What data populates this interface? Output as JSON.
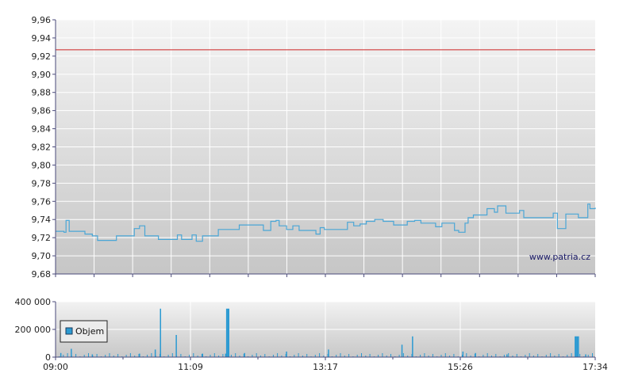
{
  "watermark": "www.patria.cz",
  "colors": {
    "price_line": "#4aa6d6",
    "reference_line": "#cc2222",
    "volume_bar": "#2b9ad2",
    "plot_bg_top": "#f4f4f4",
    "plot_bg_bottom": "#c8c8c8",
    "grid": "#ffffff",
    "axis": "#4a4a7a"
  },
  "chart_data": [
    {
      "type": "line",
      "name": "price",
      "reference_value": 9.927,
      "ylim": [
        9.68,
        9.96
      ],
      "y_ticks": [
        "9,68",
        "9,70",
        "9,72",
        "9,74",
        "9,76",
        "9,78",
        "9,80",
        "9,82",
        "9,84",
        "9,86",
        "9,88",
        "9,90",
        "9,92",
        "9,94",
        "9,96"
      ],
      "y_tick_values": [
        9.68,
        9.7,
        9.72,
        9.74,
        9.76,
        9.78,
        9.8,
        9.82,
        9.84,
        9.86,
        9.88,
        9.9,
        9.92,
        9.94,
        9.96
      ],
      "xlim": [
        "09:00",
        "17:34"
      ],
      "grid": true,
      "series": [
        {
          "values": [
            [
              "09:00",
              9.727
            ],
            [
              "09:08",
              9.726
            ],
            [
              "09:10",
              9.739
            ],
            [
              "09:13",
              9.727
            ],
            [
              "09:25",
              9.727
            ],
            [
              "09:28",
              9.724
            ],
            [
              "09:35",
              9.722
            ],
            [
              "09:40",
              9.717
            ],
            [
              "09:52",
              9.717
            ],
            [
              "09:58",
              9.722
            ],
            [
              "10:10",
              9.722
            ],
            [
              "10:15",
              9.73
            ],
            [
              "10:20",
              9.733
            ],
            [
              "10:25",
              9.722
            ],
            [
              "10:35",
              9.722
            ],
            [
              "10:38",
              9.718
            ],
            [
              "10:52",
              9.718
            ],
            [
              "10:56",
              9.723
            ],
            [
              "11:00",
              9.718
            ],
            [
              "11:06",
              9.718
            ],
            [
              "11:10",
              9.723
            ],
            [
              "11:14",
              9.716
            ],
            [
              "11:20",
              9.722
            ],
            [
              "11:30",
              9.722
            ],
            [
              "11:35",
              9.729
            ],
            [
              "11:50",
              9.729
            ],
            [
              "11:55",
              9.734
            ],
            [
              "12:12",
              9.734
            ],
            [
              "12:18",
              9.728
            ],
            [
              "12:25",
              9.738
            ],
            [
              "12:30",
              9.739
            ],
            [
              "12:33",
              9.733
            ],
            [
              "12:40",
              9.729
            ],
            [
              "12:46",
              9.733
            ],
            [
              "12:52",
              9.728
            ],
            [
              "13:05",
              9.728
            ],
            [
              "13:08",
              9.724
            ],
            [
              "13:12",
              9.731
            ],
            [
              "13:16",
              9.729
            ],
            [
              "13:35",
              9.729
            ],
            [
              "13:38",
              9.737
            ],
            [
              "13:44",
              9.733
            ],
            [
              "13:50",
              9.735
            ],
            [
              "13:56",
              9.738
            ],
            [
              "14:04",
              9.74
            ],
            [
              "14:12",
              9.738
            ],
            [
              "14:22",
              9.734
            ],
            [
              "14:28",
              9.734
            ],
            [
              "14:35",
              9.738
            ],
            [
              "14:42",
              9.739
            ],
            [
              "14:48",
              9.736
            ],
            [
              "14:56",
              9.736
            ],
            [
              "15:02",
              9.732
            ],
            [
              "15:08",
              9.736
            ],
            [
              "15:16",
              9.736
            ],
            [
              "15:20",
              9.728
            ],
            [
              "15:24",
              9.726
            ],
            [
              "15:30",
              9.736
            ],
            [
              "15:33",
              9.742
            ],
            [
              "15:38",
              9.745
            ],
            [
              "15:48",
              9.745
            ],
            [
              "15:51",
              9.752
            ],
            [
              "15:58",
              9.748
            ],
            [
              "16:01",
              9.755
            ],
            [
              "16:06",
              9.755
            ],
            [
              "16:09",
              9.747
            ],
            [
              "16:14",
              9.747
            ],
            [
              "16:22",
              9.75
            ],
            [
              "16:26",
              9.742
            ],
            [
              "16:50",
              9.742
            ],
            [
              "16:54",
              9.747
            ],
            [
              "16:58",
              9.73
            ],
            [
              "17:02",
              9.73
            ],
            [
              "17:06",
              9.746
            ],
            [
              "17:13",
              9.746
            ],
            [
              "17:18",
              9.742
            ],
            [
              "17:25",
              9.742
            ],
            [
              "17:27",
              9.757
            ],
            [
              "17:29",
              9.752
            ],
            [
              "17:34",
              9.753
            ]
          ]
        }
      ]
    },
    {
      "type": "bar",
      "name": "volume",
      "ylim": [
        0,
        400000
      ],
      "y_ticks": [
        "400 000",
        "200 000",
        "0"
      ],
      "y_tick_values": [
        400000,
        200000,
        0
      ],
      "x_ticks": [
        "09:00",
        "11:09",
        "13:17",
        "15:26",
        "17:34"
      ],
      "xlim": [
        "09:00",
        "17:34"
      ],
      "legend": {
        "label": "Objem",
        "placement": "left"
      },
      "series": [
        {
          "name": "Objem",
          "values": [
            [
              "09:05",
              30000
            ],
            [
              "09:15",
              60000
            ],
            [
              "09:35",
              20000
            ],
            [
              "10:20",
              25000
            ],
            [
              "10:35",
              55000
            ],
            [
              "10:40",
              350000
            ],
            [
              "10:55",
              160000
            ],
            [
              "11:20",
              25000
            ],
            [
              "11:42",
              25000
            ],
            [
              "11:43",
              350000
            ],
            [
              "11:44",
              350000
            ],
            [
              "11:45",
              350000
            ],
            [
              "12:00",
              30000
            ],
            [
              "12:40",
              40000
            ],
            [
              "13:20",
              55000
            ],
            [
              "14:30",
              90000
            ],
            [
              "14:40",
              150000
            ],
            [
              "15:28",
              40000
            ],
            [
              "15:40",
              30000
            ],
            [
              "16:10",
              20000
            ],
            [
              "17:15",
              150000
            ],
            [
              "17:16",
              150000
            ],
            [
              "17:17",
              150000
            ],
            [
              "17:18",
              150000
            ],
            [
              "17:25",
              20000
            ]
          ]
        }
      ]
    }
  ]
}
